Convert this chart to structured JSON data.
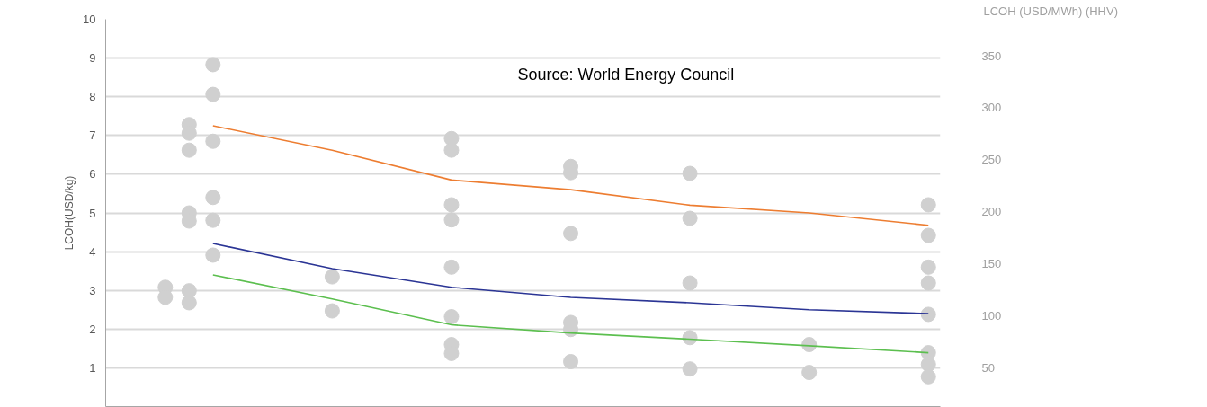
{
  "chart_data": {
    "type": "scatter",
    "ylabel": "LCOH(USD/kg)",
    "y2label": "LCOH (USD/MWh) (HHV)",
    "annotations": [
      "Source: World Energy Council"
    ],
    "categories": [
      null,
      null,
      null,
      null,
      null,
      null,
      null,
      null,
      null,
      null,
      null,
      null,
      null,
      null,
      null,
      null,
      null,
      null,
      null,
      null,
      null,
      null,
      null,
      null,
      null,
      null,
      null,
      null,
      null,
      null,
      null,
      null,
      null,
      null,
      null
    ],
    "ylim": [
      0,
      10
    ],
    "yticks": [
      1,
      2,
      3,
      4,
      5,
      6,
      7,
      8,
      9,
      10
    ],
    "y2lim": [
      13,
      385
    ],
    "y2ticks": [
      50,
      100,
      150,
      200,
      250,
      300,
      350
    ],
    "grid": "y",
    "tick_labels": "y",
    "marker": "circle",
    "series": [
      {
        "color": "#d0d0d0",
        "values": [
          null,
          null,
          3.08,
          7.28,
          8.83,
          null,
          null,
          null,
          null,
          3.35,
          null,
          null,
          null,
          null,
          6.92,
          null,
          null,
          null,
          null,
          6.2,
          null,
          null,
          null,
          null,
          6.02,
          null,
          null,
          null,
          null,
          1.6,
          null,
          null,
          null,
          null,
          5.21
        ]
      },
      {
        "color": "#d0d0d0",
        "values": [
          null,
          null,
          2.82,
          7.06,
          8.06,
          null,
          null,
          null,
          null,
          2.47,
          null,
          null,
          null,
          null,
          6.62,
          null,
          null,
          null,
          null,
          6.04,
          null,
          null,
          null,
          null,
          4.86,
          null,
          null,
          null,
          null,
          0.88,
          null,
          null,
          null,
          null,
          4.42
        ]
      },
      {
        "color": "#d0d0d0",
        "values": [
          null,
          null,
          null,
          6.62,
          6.85,
          null,
          null,
          null,
          null,
          null,
          null,
          null,
          null,
          null,
          5.21,
          null,
          null,
          null,
          null,
          4.47,
          null,
          null,
          null,
          null,
          3.19,
          null,
          null,
          null,
          null,
          null,
          null,
          null,
          null,
          null,
          3.6
        ]
      },
      {
        "color": "#d0d0d0",
        "values": [
          null,
          null,
          null,
          5.0,
          5.4,
          null,
          null,
          null,
          null,
          null,
          null,
          null,
          null,
          null,
          4.82,
          null,
          null,
          null,
          null,
          2.17,
          null,
          null,
          null,
          null,
          1.78,
          null,
          null,
          null,
          null,
          null,
          null,
          null,
          null,
          null,
          3.19
        ]
      },
      {
        "color": "#d0d0d0",
        "values": [
          null,
          null,
          null,
          4.79,
          4.81,
          null,
          null,
          null,
          null,
          null,
          null,
          null,
          null,
          null,
          3.6,
          null,
          null,
          null,
          null,
          1.99,
          null,
          null,
          null,
          null,
          0.97,
          null,
          null,
          null,
          null,
          null,
          null,
          null,
          null,
          null,
          2.38
        ]
      },
      {
        "color": "#d0d0d0",
        "values": [
          null,
          null,
          null,
          2.99,
          3.91,
          null,
          null,
          null,
          null,
          null,
          null,
          null,
          null,
          null,
          2.32,
          null,
          null,
          null,
          null,
          1.16,
          null,
          null,
          null,
          null,
          null,
          null,
          null,
          null,
          null,
          null,
          null,
          null,
          null,
          null,
          1.39
        ]
      },
      {
        "color": "#d0d0d0",
        "values": [
          null,
          null,
          null,
          2.68,
          null,
          null,
          null,
          null,
          null,
          null,
          null,
          null,
          null,
          null,
          1.6,
          null,
          null,
          null,
          null,
          null,
          null,
          null,
          null,
          null,
          null,
          null,
          null,
          null,
          null,
          null,
          null,
          null,
          null,
          null,
          1.09
        ]
      },
      {
        "color": "#d0d0d0",
        "values": [
          null,
          null,
          null,
          null,
          null,
          null,
          null,
          null,
          null,
          null,
          null,
          null,
          null,
          null,
          1.37,
          null,
          null,
          null,
          null,
          null,
          null,
          null,
          null,
          null,
          null,
          null,
          null,
          null,
          null,
          null,
          null,
          null,
          null,
          null,
          0.77
        ]
      },
      {
        "type": "line",
        "marker": "none",
        "color": "#ed7d31",
        "values": [
          null,
          null,
          null,
          null,
          7.25,
          null,
          null,
          null,
          null,
          6.62,
          null,
          null,
          null,
          null,
          5.85,
          null,
          null,
          null,
          null,
          5.6,
          null,
          null,
          null,
          null,
          5.2,
          null,
          null,
          null,
          null,
          5.0,
          null,
          null,
          null,
          null,
          4.68
        ]
      },
      {
        "type": "line",
        "marker": "none",
        "color": "#2b3595",
        "values": [
          null,
          null,
          null,
          null,
          4.21,
          null,
          null,
          null,
          null,
          3.56,
          null,
          null,
          null,
          null,
          3.08,
          null,
          null,
          null,
          null,
          2.82,
          null,
          null,
          null,
          null,
          2.68,
          null,
          null,
          null,
          null,
          2.5,
          null,
          null,
          null,
          null,
          2.4
        ]
      },
      {
        "type": "line",
        "marker": "none",
        "color": "#5cbf4f",
        "values": [
          null,
          null,
          null,
          null,
          3.4,
          null,
          null,
          null,
          null,
          2.78,
          null,
          null,
          null,
          null,
          2.11,
          null,
          null,
          null,
          null,
          1.9,
          null,
          null,
          null,
          null,
          1.74,
          null,
          null,
          null,
          null,
          1.57,
          null,
          null,
          null,
          null,
          1.39
        ]
      }
    ]
  }
}
